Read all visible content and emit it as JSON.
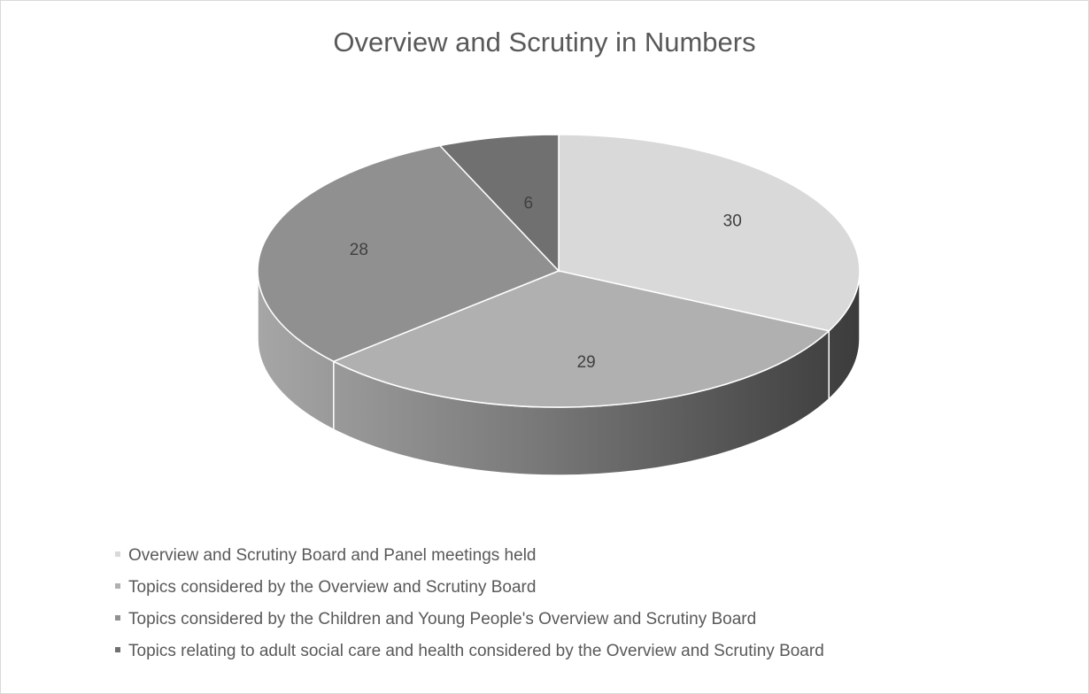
{
  "chart_data": {
    "type": "pie",
    "title": "Overview and Scrutiny in Numbers",
    "style": "3d",
    "categories": [
      "Overview and Scrutiny Board and Panel meetings held",
      "Topics considered by the Overview and Scrutiny Board",
      "Topics considered by the Children and Young People's Overview and Scrutiny Board",
      "Topics relating to adult social care and health considered by the Overview and Scrutiny Board"
    ],
    "values": [
      30,
      29,
      28,
      6
    ],
    "colors": [
      "#d9d9d9",
      "#b0b0b0",
      "#909090",
      "#707070"
    ],
    "legend_position": "bottom-left",
    "data_labels": true
  }
}
